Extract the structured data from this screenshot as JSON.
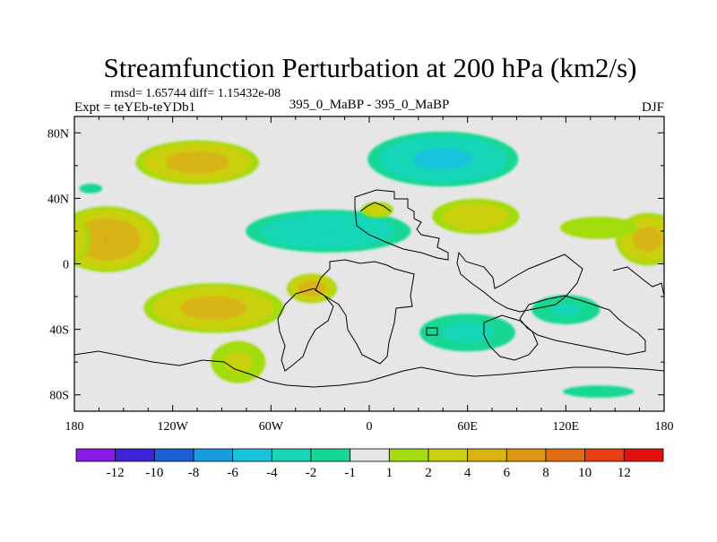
{
  "chart_data": {
    "type": "heatmap",
    "title": "Streamfunction Perturbation at 200 hPa (km2/s)",
    "stats_line": "rmsd= 1.65744 diff= 1.15432e-08",
    "left_label": "Expt = teYEb-teYDb1",
    "center_label": "395_0_MaBP - 395_0_MaBP",
    "right_label": "DJF",
    "x_ticks": [
      "180",
      "120W",
      "60W",
      "0",
      "60E",
      "120E",
      "180"
    ],
    "x_tick_values": [
      -180,
      -120,
      -60,
      0,
      60,
      120,
      180
    ],
    "y_ticks": [
      "80N",
      "40N",
      "0",
      "40S",
      "80S"
    ],
    "y_tick_values": [
      80,
      40,
      0,
      -40,
      -80
    ],
    "xlim": [
      -180,
      180
    ],
    "ylim": [
      -90,
      90
    ],
    "colorbar": {
      "colors": [
        "#8b1ae8",
        "#3a24d6",
        "#1a5fd8",
        "#1a9be0",
        "#19c3dd",
        "#17d6b8",
        "#14d893",
        "#e6e6e6",
        "#a3dc10",
        "#cbd011",
        "#d8b413",
        "#dc9612",
        "#e06d12",
        "#e64012",
        "#e0110f"
      ],
      "labels": [
        "-12",
        "-10",
        "-8",
        "-6",
        "-4",
        "-2",
        "-1",
        "1",
        "2",
        "4",
        "6",
        "8",
        "10",
        "12"
      ],
      "levels": [
        -12,
        -10,
        -8,
        -6,
        -4,
        -2,
        -1,
        1,
        2,
        4,
        6,
        8,
        10,
        12
      ]
    },
    "anomalies": [
      {
        "lon": -105,
        "lat": 62,
        "rlon": 42,
        "rlat": 15,
        "peak": 5
      },
      {
        "lon": 45,
        "lat": 64,
        "rlon": 52,
        "rlat": 19,
        "peak": -4.5
      },
      {
        "lon": -160,
        "lat": 15,
        "rlon": 35,
        "rlat": 22,
        "peak": 6
      },
      {
        "lon": 170,
        "lat": 15,
        "rlon": 22,
        "rlat": 18,
        "peak": 4.8
      },
      {
        "lon": -25,
        "lat": 20,
        "rlon": 58,
        "rlat": 15,
        "peak": -4
      },
      {
        "lon": 65,
        "lat": 29,
        "rlon": 32,
        "rlat": 13,
        "peak": 3.2
      },
      {
        "lon": 5,
        "lat": 33,
        "rlon": 12,
        "rlat": 6,
        "peak": 3.0
      },
      {
        "lon": 140,
        "lat": 22,
        "rlon": 38,
        "rlat": 11,
        "peak": 1.6
      },
      {
        "lon": -95,
        "lat": -27,
        "rlon": 48,
        "rlat": 17,
        "peak": 4.8
      },
      {
        "lon": -35,
        "lat": -15,
        "rlon": 17,
        "rlat": 10,
        "peak": 5.2
      },
      {
        "lon": -80,
        "lat": -60,
        "rlon": 22,
        "rlat": 17,
        "peak": 2.3
      },
      {
        "lon": 60,
        "lat": -42,
        "rlon": 38,
        "rlat": 15,
        "peak": -2.4
      },
      {
        "lon": 120,
        "lat": -28,
        "rlon": 28,
        "rlat": 12,
        "peak": -2.2
      },
      {
        "lon": 140,
        "lat": -78,
        "rlon": 35,
        "rlat": 6,
        "peak": -1.6
      },
      {
        "lon": -170,
        "lat": 46,
        "rlon": 12,
        "rlat": 5,
        "peak": -1.5
      }
    ]
  }
}
